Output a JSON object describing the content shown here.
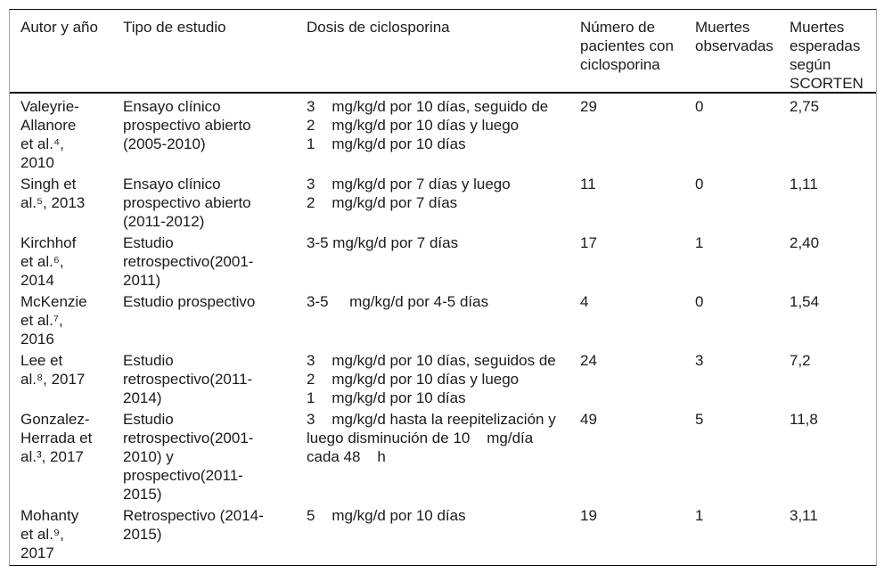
{
  "table": {
    "columns": [
      {
        "label": "Autor y año"
      },
      {
        "label": "Tipo de estudio"
      },
      {
        "label": "Dosis de ciclosporina"
      },
      {
        "label": "Número de\npacientes con\nciclosporina"
      },
      {
        "label": "Muertes\nobservadas"
      },
      {
        "label": "Muertes\nesperadas\nsegún\nSCORTEN"
      }
    ],
    "rows": [
      {
        "author": "Valeyrie-\nAllanore\net al.⁴,\n2010",
        "study_type": "Ensayo clínico\nprospectivo abierto\n(2005-2010)",
        "dose": "3    mg/kg/d por 10 días, seguido de\n2    mg/kg/d por 10 días y luego\n1    mg/kg/d por 10 días",
        "patients": "29",
        "observed_deaths": "0",
        "expected_deaths": "2,75"
      },
      {
        "author": "Singh et\nal.⁵, 2013",
        "study_type": "Ensayo clínico\nprospectivo abierto\n(2011-2012)",
        "dose": "3    mg/kg/d por 7 días y luego\n2    mg/kg/d por 7 días",
        "patients": "11",
        "observed_deaths": "0",
        "expected_deaths": "1,11"
      },
      {
        "author": "Kirchhof\net al.⁶,\n2014",
        "study_type": "Estudio\nretrospectivo(2001-\n2011)",
        "dose": "3-5 mg/kg/d por 7 días",
        "patients": "17",
        "observed_deaths": "1",
        "expected_deaths": "2,40"
      },
      {
        "author": "McKenzie\net al.⁷,\n2016",
        "study_type": "Estudio prospectivo",
        "dose": "3-5     mg/kg/d por 4-5 días",
        "patients": "4",
        "observed_deaths": "0",
        "expected_deaths": "1,54"
      },
      {
        "author": "Lee et\nal.⁸, 2017",
        "study_type": "Estudio\nretrospectivo(2011-\n2014)",
        "dose": "3    mg/kg/d por 10 días, seguidos de\n2    mg/kg/d por 10 días y luego\n1    mg/kg/d por 10 días",
        "patients": "24",
        "observed_deaths": "3",
        "expected_deaths": "7,2"
      },
      {
        "author": "Gonzalez-\nHerrada et\nal.³, 2017",
        "study_type": "Estudio\nretrospectivo(2001-\n2010) y\nprospectivo(2011-\n2015)",
        "dose": "3    mg/kg/d hasta la reepitelización y\nluego disminución de 10    mg/día\ncada 48    h",
        "patients": "49",
        "observed_deaths": "5",
        "expected_deaths": "11,8"
      },
      {
        "author": "Mohanty\net al.⁹,\n2017",
        "study_type": "Retrospectivo (2014-\n2015)",
        "dose": "5    mg/kg/d por 10 días",
        "patients": "19",
        "observed_deaths": "1",
        "expected_deaths": "3,11"
      }
    ]
  }
}
